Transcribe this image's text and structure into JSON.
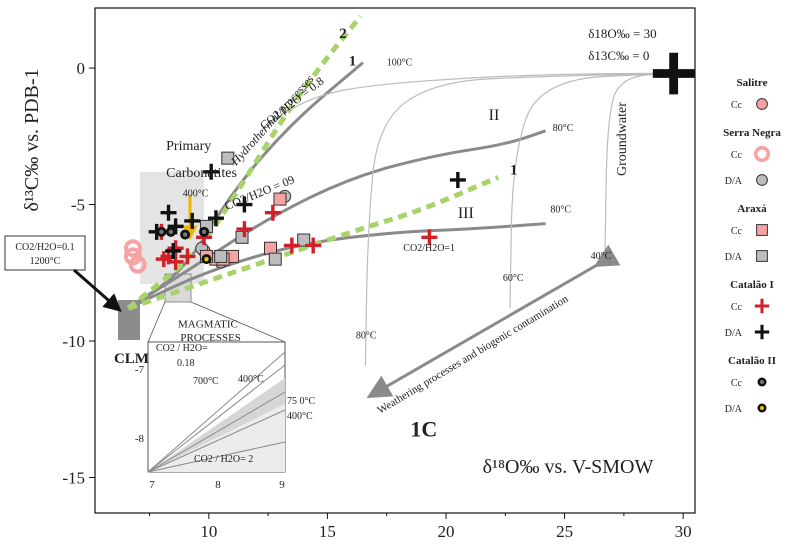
{
  "chart_data": {
    "type": "scatter",
    "xlabel": "δ¹⁸O‰ vs. V-SMOW",
    "ylabel": "δ¹³C‰ vs. PDB-1",
    "xlim": [
      5.2,
      30.5
    ],
    "ylim": [
      -16.3,
      2.2
    ],
    "xticks": [
      "10",
      "15",
      "20",
      "25",
      "30"
    ],
    "yticks": [
      "0",
      "-5",
      "-10",
      "-15"
    ],
    "grid": false,
    "legend": "right",
    "legend_items": [
      {
        "group": "Salitre",
        "entries": [
          {
            "label": "Cc",
            "marker": "circle",
            "color": "#f7a3a3"
          }
        ]
      },
      {
        "group": "Serra Negra",
        "entries": [
          {
            "label": "Cc",
            "marker": "ring",
            "color": "#f7a3a3"
          },
          {
            "label": "D/A",
            "marker": "circle",
            "color": "#bdbdbd"
          }
        ]
      },
      {
        "group": "Araxá",
        "entries": [
          {
            "label": "Cc",
            "marker": "square",
            "color": "#f7a3a3"
          },
          {
            "label": "D/A",
            "marker": "square",
            "color": "#bdbdbd"
          }
        ]
      },
      {
        "group": "Catalão I",
        "entries": [
          {
            "label": "Cc",
            "marker": "plus",
            "color": "#d2202a"
          },
          {
            "label": "D/A",
            "marker": "plus",
            "color": "#111111"
          }
        ]
      },
      {
        "group": "Catalão II",
        "entries": [
          {
            "label": "Cc",
            "marker": "dot",
            "color": "#111111"
          },
          {
            "label": "D/A",
            "marker": "dot",
            "color": "#e8c800"
          }
        ]
      }
    ],
    "series": [
      {
        "marker": "circle",
        "color": "#f7a3a3",
        "points": [
          [
            9.8,
            -6.7
          ]
        ]
      },
      {
        "marker": "ring",
        "color": "#f7a3a3",
        "points": [
          [
            6.8,
            -6.6
          ],
          [
            7.0,
            -7.2
          ],
          [
            6.8,
            -6.9
          ]
        ]
      },
      {
        "marker": "circle",
        "color": "#bdbdbd",
        "points": [
          [
            9.7,
            -6.6
          ],
          [
            13.2,
            -4.7
          ],
          [
            10.5,
            -7.1
          ]
        ]
      },
      {
        "marker": "square",
        "color": "#f7a3a3",
        "points": [
          [
            13.0,
            -4.8
          ],
          [
            11.0,
            -6.9
          ],
          [
            10.3,
            -7.0
          ],
          [
            12.6,
            -6.6
          ],
          [
            9.9,
            -6.9
          ],
          [
            10.6,
            -7.0
          ]
        ]
      },
      {
        "marker": "square",
        "color": "#bdbdbd",
        "points": [
          [
            10.8,
            -3.3
          ],
          [
            9.9,
            -5.8
          ],
          [
            11.4,
            -6.2
          ],
          [
            14.0,
            -6.3
          ],
          [
            12.8,
            -7.0
          ],
          [
            10.5,
            -6.9
          ]
        ]
      },
      {
        "marker": "plus",
        "color": "#d2202a",
        "points": [
          [
            8.0,
            -6.0
          ],
          [
            8.3,
            -6.9
          ],
          [
            8.6,
            -6.6
          ],
          [
            8.6,
            -7.1
          ],
          [
            9.1,
            -6.9
          ],
          [
            11.5,
            -5.9
          ],
          [
            12.7,
            -5.3
          ],
          [
            13.5,
            -6.5
          ],
          [
            14.4,
            -6.5
          ],
          [
            19.3,
            -6.2
          ],
          [
            9.8,
            -6.2
          ],
          [
            8.1,
            -7.0
          ]
        ]
      },
      {
        "marker": "plus",
        "color": "#111111",
        "points": [
          [
            10.1,
            -3.8
          ],
          [
            7.8,
            -6.0
          ],
          [
            8.3,
            -5.3
          ],
          [
            8.6,
            -5.8
          ],
          [
            9.3,
            -5.6
          ],
          [
            10.3,
            -5.5
          ],
          [
            11.5,
            -5.0
          ],
          [
            20.5,
            -4.1
          ],
          [
            29.6,
            -0.2
          ],
          [
            8.5,
            -6.7
          ]
        ]
      },
      {
        "marker": "dot",
        "color": "#111111",
        "points": [
          [
            8.0,
            -6.0
          ],
          [
            8.4,
            -6.0
          ],
          [
            9.8,
            -6.0
          ],
          [
            9.0,
            -6.1
          ]
        ]
      },
      {
        "marker": "dot",
        "color": "#e8c800",
        "points": [
          [
            9.9,
            -7.0
          ]
        ]
      }
    ],
    "curves": [
      {
        "color": "#8a8a8a",
        "width": 3,
        "dash": false,
        "points": [
          [
            6.6,
            -8.8
          ],
          [
            9.0,
            -7.4
          ],
          [
            11.0,
            -4.5
          ],
          [
            13.5,
            -2.0
          ],
          [
            16.5,
            0.2
          ]
        ]
      },
      {
        "color": "#8a8a8a",
        "width": 3,
        "dash": false,
        "points": [
          [
            6.6,
            -8.8
          ],
          [
            9.5,
            -7.2
          ],
          [
            12.5,
            -5.5
          ],
          [
            16.0,
            -4.0
          ],
          [
            19.5,
            -3.2
          ],
          [
            22.5,
            -2.8
          ],
          [
            24.2,
            -2.3
          ]
        ]
      },
      {
        "color": "#8a8a8a",
        "width": 3,
        "dash": false,
        "points": [
          [
            6.6,
            -8.8
          ],
          [
            10.0,
            -7.4
          ],
          [
            14.0,
            -6.4
          ],
          [
            18.0,
            -6.0
          ],
          [
            21.0,
            -5.9
          ],
          [
            24.2,
            -5.7
          ]
        ]
      },
      {
        "color": "#a8d36a",
        "width": 5,
        "dash": true,
        "points": [
          [
            6.6,
            -8.8
          ],
          [
            9.5,
            -6.8
          ],
          [
            11.3,
            -4.4
          ],
          [
            13.3,
            -1.6
          ],
          [
            15.0,
            0.4
          ],
          [
            16.4,
            1.9
          ]
        ]
      },
      {
        "color": "#a8d36a",
        "width": 5,
        "dash": true,
        "points": [
          [
            6.6,
            -8.8
          ],
          [
            12.0,
            -7.2
          ],
          [
            16.0,
            -6.0
          ],
          [
            19.0,
            -5.2
          ],
          [
            22.2,
            -4.0
          ]
        ]
      },
      {
        "color": "#bcbcbc",
        "width": 1.2,
        "dash": false,
        "points": [
          [
            12.5,
            -2.0
          ],
          [
            14.5,
            -1.0
          ],
          [
            17.0,
            -0.6
          ],
          [
            22.0,
            -0.3
          ],
          [
            26.5,
            -0.2
          ],
          [
            29.6,
            -0.2
          ]
        ]
      },
      {
        "color": "#bcbcbc",
        "width": 1.2,
        "dash": false,
        "points": [
          [
            16.6,
            -10.9
          ],
          [
            16.7,
            -6.0
          ],
          [
            17.1,
            -2.0
          ],
          [
            19.5,
            -0.5
          ],
          [
            24.0,
            -0.3
          ],
          [
            29.6,
            -0.2
          ]
        ]
      },
      {
        "color": "#bcbcbc",
        "width": 1.2,
        "dash": false,
        "points": [
          [
            22.7,
            -8.8
          ],
          [
            22.8,
            -3.2
          ],
          [
            24.0,
            -0.4
          ],
          [
            29.6,
            -0.2
          ]
        ]
      },
      {
        "color": "#bcbcbc",
        "width": 1.2,
        "dash": false,
        "points": [
          [
            26.7,
            -7.2
          ],
          [
            26.8,
            -1.5
          ],
          [
            27.5,
            -0.3
          ],
          [
            29.6,
            -0.2
          ]
        ]
      }
    ],
    "annotations": [
      {
        "text": "Primary",
        "x": 8.2,
        "y": -3.0
      },
      {
        "text": "Carbonatites",
        "x": 8.2,
        "y": -4.0
      },
      {
        "text": "MAGMATIC",
        "x": 8.7,
        "y": -9.5
      },
      {
        "text": "PROCESSES",
        "x": 8.8,
        "y": -10.0
      },
      {
        "text": "CLM",
        "x": 6.0,
        "y": -10.8
      },
      {
        "text": "Hydrothermal processes",
        "x": 12.8,
        "y": -2.0
      },
      {
        "text": "CO2/H2O = 0.8",
        "x": 13.6,
        "y": -1.4
      },
      {
        "text": "CO2/H2O = 09",
        "x": 12.2,
        "y": -4.7
      },
      {
        "text": "CO2/H2O=1",
        "x": 18.2,
        "y": -6.7
      },
      {
        "text": "Weathering processes and biogenic contamination",
        "x": 21.2,
        "y": -10.6
      },
      {
        "text": "Groundwater",
        "x": 27.6,
        "y": -2.6
      },
      {
        "text": "100°C",
        "x": 17.5,
        "y": 0.1
      },
      {
        "text": "80°C",
        "x": 24.5,
        "y": -2.3
      },
      {
        "text": "80°C",
        "x": 24.4,
        "y": -5.3
      },
      {
        "text": "80°C",
        "x": 16.2,
        "y": -9.9
      },
      {
        "text": "60°C",
        "x": 22.4,
        "y": -7.8
      },
      {
        "text": "40°C",
        "x": 26.1,
        "y": -7.0
      },
      {
        "text": "400°C",
        "x": 8.9,
        "y": -4.7
      },
      {
        "text": "1C",
        "x": 18.5,
        "y": -13.5
      },
      {
        "text": "1",
        "x": 15.9,
        "y": 0.1
      },
      {
        "text": "2",
        "x": 15.5,
        "y": 1.1
      },
      {
        "text": "II",
        "x": 21.8,
        "y": -1.9
      },
      {
        "text": "III",
        "x": 20.5,
        "y": -5.5
      },
      {
        "text": "1",
        "x": 22.7,
        "y": -3.9
      },
      {
        "text": "δ18O‰ = 30",
        "x": 26.0,
        "y": 1.1
      },
      {
        "text": "δ13C‰ = 0",
        "x": 26.0,
        "y": 0.3
      }
    ],
    "inset": {
      "label": "CO2/H2O=0.1",
      "label2": "1200°C",
      "xlim": [
        7,
        9
      ],
      "ylim": [
        -8.7,
        -6.6
      ],
      "xticks": [
        "7",
        "8",
        "9"
      ],
      "yticks": [
        "-7",
        "-8"
      ],
      "annotations": [
        "CO2 / H2O=",
        "0.18",
        "700°C",
        "400°C",
        "75 0°C",
        "400°C",
        "CO2 / H2O= 2"
      ]
    }
  }
}
